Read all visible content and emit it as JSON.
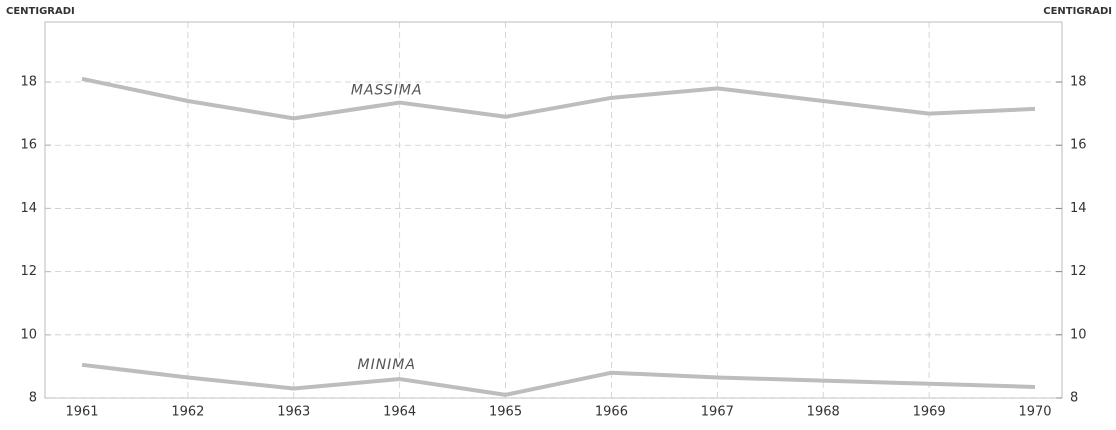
{
  "chart_data": {
    "type": "line",
    "y_label": "CENTIGRADI",
    "y2_label": "CENTIGRADI",
    "categories": [
      "1961",
      "1962",
      "1963",
      "1964",
      "1965",
      "1966",
      "1967",
      "1968",
      "1969",
      "1970"
    ],
    "series": [
      {
        "name": "MASSIMA",
        "color": "#bdbdbd",
        "values": [
          18.1,
          17.4,
          16.85,
          17.35,
          16.9,
          17.5,
          17.8,
          17.4,
          17.0,
          17.15
        ]
      },
      {
        "name": "MINIMA",
        "color": "#bdbdbd",
        "values": [
          9.05,
          8.65,
          8.3,
          8.6,
          8.1,
          8.8,
          8.65,
          8.55,
          8.45,
          8.35
        ],
        "axis": "y2"
      }
    ],
    "ylim": [
      8,
      19.9
    ],
    "yticks": [
      8,
      10,
      12,
      14,
      16,
      18
    ],
    "y2lim": [
      8,
      19.9
    ],
    "y2ticks": [
      8,
      10,
      12,
      14,
      16,
      18
    ],
    "grid": true
  }
}
